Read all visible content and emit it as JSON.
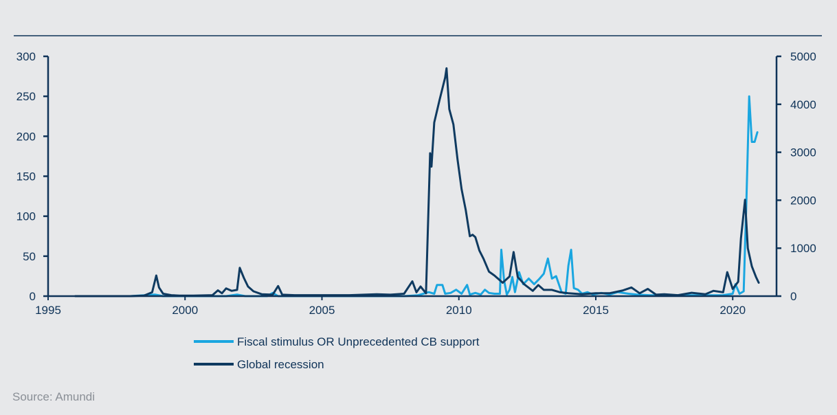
{
  "source": "Source: Amundi",
  "colors": {
    "background": "#e7e8ea",
    "axis": "#0f3358",
    "fiscal": "#1aa6e0",
    "recession": "#0f3a60",
    "source_text": "#8a8f96"
  },
  "chart_data": {
    "type": "line",
    "title": "",
    "xlabel": "",
    "ylabel_left": "",
    "ylabel_right": "",
    "xlim": [
      1995,
      2021.6
    ],
    "x_ticks": [
      "1995",
      "2000",
      "2005",
      "2010",
      "2015",
      "2020"
    ],
    "ylim_left": [
      0,
      300
    ],
    "y_ticks_left": [
      "0",
      "50",
      "100",
      "150",
      "200",
      "250",
      "300"
    ],
    "ylim_right": [
      0,
      5000
    ],
    "y_ticks_right": [
      "0",
      "1000",
      "2000",
      "3000",
      "4000",
      "5000"
    ],
    "grid": false,
    "legend_position": "bottom",
    "series": [
      {
        "name": "Fiscal stimulus OR Unprecedented CB support",
        "axis": "left",
        "color": "#1aa6e0",
        "points": [
          [
            1996.0,
            0
          ],
          [
            1998.0,
            0
          ],
          [
            1998.9,
            2
          ],
          [
            1999.2,
            0
          ],
          [
            2001.5,
            0
          ],
          [
            2001.9,
            2
          ],
          [
            2002.2,
            0
          ],
          [
            2003.0,
            0
          ],
          [
            2003.2,
            4
          ],
          [
            2003.4,
            0
          ],
          [
            2006.0,
            0
          ],
          [
            2008.0,
            0
          ],
          [
            2008.5,
            1
          ],
          [
            2008.9,
            5
          ],
          [
            2009.1,
            3
          ],
          [
            2009.2,
            14
          ],
          [
            2009.4,
            14
          ],
          [
            2009.5,
            3
          ],
          [
            2009.7,
            4
          ],
          [
            2009.9,
            8
          ],
          [
            2010.1,
            3
          ],
          [
            2010.3,
            14
          ],
          [
            2010.4,
            2
          ],
          [
            2010.6,
            4
          ],
          [
            2010.8,
            2
          ],
          [
            2010.95,
            8
          ],
          [
            2011.1,
            4
          ],
          [
            2011.3,
            3
          ],
          [
            2011.5,
            3
          ],
          [
            2011.55,
            58
          ],
          [
            2011.65,
            20
          ],
          [
            2011.75,
            2
          ],
          [
            2011.85,
            8
          ],
          [
            2011.95,
            24
          ],
          [
            2012.05,
            5
          ],
          [
            2012.2,
            30
          ],
          [
            2012.35,
            15
          ],
          [
            2012.55,
            22
          ],
          [
            2012.75,
            15
          ],
          [
            2012.95,
            22
          ],
          [
            2013.1,
            28
          ],
          [
            2013.25,
            47
          ],
          [
            2013.4,
            22
          ],
          [
            2013.55,
            25
          ],
          [
            2013.75,
            5
          ],
          [
            2013.9,
            3
          ],
          [
            2014.0,
            38
          ],
          [
            2014.1,
            58
          ],
          [
            2014.2,
            10
          ],
          [
            2014.35,
            8
          ],
          [
            2014.5,
            3
          ],
          [
            2014.7,
            5
          ],
          [
            2014.9,
            2
          ],
          [
            2015.2,
            4
          ],
          [
            2015.5,
            2
          ],
          [
            2015.8,
            5
          ],
          [
            2016.2,
            3
          ],
          [
            2016.5,
            2
          ],
          [
            2017.0,
            1
          ],
          [
            2018.0,
            1
          ],
          [
            2019.0,
            1
          ],
          [
            2019.6,
            1
          ],
          [
            2019.8,
            2
          ],
          [
            2020.0,
            3
          ],
          [
            2020.1,
            15
          ],
          [
            2020.25,
            3
          ],
          [
            2020.4,
            6
          ],
          [
            2020.5,
            120
          ],
          [
            2020.6,
            250
          ],
          [
            2020.7,
            193
          ],
          [
            2020.8,
            193
          ],
          [
            2020.9,
            205
          ]
        ]
      },
      {
        "name": "Global recession",
        "axis": "right",
        "color": "#0f3a60",
        "points": [
          [
            1996.0,
            0
          ],
          [
            1998.0,
            0
          ],
          [
            1998.5,
            10
          ],
          [
            1998.8,
            80
          ],
          [
            1998.95,
            430
          ],
          [
            1999.05,
            180
          ],
          [
            1999.2,
            50
          ],
          [
            1999.5,
            20
          ],
          [
            1999.8,
            10
          ],
          [
            2000.3,
            10
          ],
          [
            2001.0,
            20
          ],
          [
            2001.2,
            120
          ],
          [
            2001.35,
            60
          ],
          [
            2001.5,
            160
          ],
          [
            2001.7,
            110
          ],
          [
            2001.9,
            130
          ],
          [
            2002.0,
            590
          ],
          [
            2002.15,
            380
          ],
          [
            2002.3,
            200
          ],
          [
            2002.5,
            100
          ],
          [
            2002.8,
            40
          ],
          [
            2003.2,
            30
          ],
          [
            2003.4,
            210
          ],
          [
            2003.55,
            30
          ],
          [
            2004.0,
            20
          ],
          [
            2005.0,
            20
          ],
          [
            2006.0,
            20
          ],
          [
            2007.0,
            40
          ],
          [
            2007.5,
            30
          ],
          [
            2008.0,
            50
          ],
          [
            2008.3,
            310
          ],
          [
            2008.45,
            80
          ],
          [
            2008.6,
            200
          ],
          [
            2008.8,
            60
          ],
          [
            2008.95,
            2980
          ],
          [
            2009.0,
            2700
          ],
          [
            2009.1,
            3620
          ],
          [
            2009.3,
            4100
          ],
          [
            2009.5,
            4560
          ],
          [
            2009.55,
            4750
          ],
          [
            2009.65,
            3900
          ],
          [
            2009.8,
            3580
          ],
          [
            2009.95,
            2850
          ],
          [
            2010.1,
            2230
          ],
          [
            2010.25,
            1800
          ],
          [
            2010.4,
            1250
          ],
          [
            2010.5,
            1280
          ],
          [
            2010.6,
            1230
          ],
          [
            2010.75,
            950
          ],
          [
            2010.9,
            780
          ],
          [
            2011.1,
            510
          ],
          [
            2011.3,
            430
          ],
          [
            2011.6,
            280
          ],
          [
            2011.85,
            410
          ],
          [
            2012.0,
            920
          ],
          [
            2012.15,
            400
          ],
          [
            2012.4,
            240
          ],
          [
            2012.7,
            110
          ],
          [
            2012.9,
            230
          ],
          [
            2013.1,
            130
          ],
          [
            2013.4,
            130
          ],
          [
            2013.7,
            80
          ],
          [
            2014.0,
            60
          ],
          [
            2014.5,
            40
          ],
          [
            2015.0,
            60
          ],
          [
            2015.5,
            60
          ],
          [
            2016.0,
            120
          ],
          [
            2016.3,
            180
          ],
          [
            2016.6,
            60
          ],
          [
            2016.9,
            150
          ],
          [
            2017.2,
            30
          ],
          [
            2017.5,
            40
          ],
          [
            2018.0,
            20
          ],
          [
            2018.5,
            70
          ],
          [
            2019.0,
            40
          ],
          [
            2019.3,
            110
          ],
          [
            2019.65,
            80
          ],
          [
            2019.8,
            500
          ],
          [
            2020.0,
            150
          ],
          [
            2020.2,
            300
          ],
          [
            2020.3,
            1200
          ],
          [
            2020.45,
            2010
          ],
          [
            2020.55,
            1000
          ],
          [
            2020.7,
            620
          ],
          [
            2020.85,
            400
          ],
          [
            2020.95,
            280
          ]
        ]
      }
    ]
  }
}
